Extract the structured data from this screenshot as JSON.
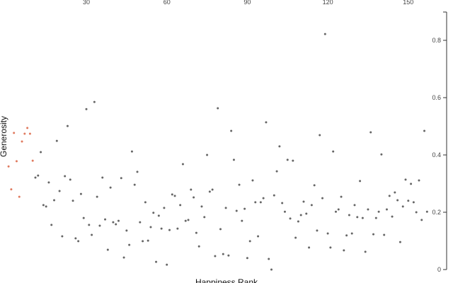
{
  "chart_data": {
    "type": "scatter",
    "title": "",
    "xlabel": "Happiness Rank",
    "ylabel": "Generosity",
    "xticks": [
      30,
      60,
      90,
      120,
      150
    ],
    "yticks": [
      0,
      0.2,
      0.4,
      0.6,
      0.8
    ],
    "ytick_labels": [
      "0",
      "0.2",
      "0.4",
      "0.6",
      "0.8"
    ],
    "xlim": [
      -2,
      168
    ],
    "ylim": [
      0,
      0.9
    ],
    "x_axis_position": "top",
    "y_axis_position": "right",
    "grid": false,
    "colors": {
      "highlight": "#e07a5f",
      "default": "#666666"
    },
    "highlight_count": 10,
    "x": [
      1,
      2,
      3,
      4,
      5,
      6,
      7,
      8,
      9,
      10,
      11,
      12,
      13,
      14,
      15,
      16,
      17,
      18,
      19,
      20,
      21,
      22,
      23,
      24,
      25,
      26,
      27,
      28,
      29,
      30,
      31,
      32,
      33,
      34,
      35,
      36,
      37,
      38,
      39,
      40,
      41,
      42,
      43,
      44,
      45,
      46,
      47,
      48,
      49,
      50,
      51,
      52,
      53,
      54,
      55,
      56,
      57,
      58,
      59,
      60,
      61,
      62,
      63,
      64,
      65,
      66,
      67,
      68,
      69,
      70,
      71,
      72,
      73,
      74,
      75,
      76,
      77,
      78,
      79,
      80,
      81,
      82,
      83,
      84,
      85,
      86,
      87,
      88,
      89,
      90,
      91,
      92,
      93,
      94,
      95,
      96,
      97,
      98,
      99,
      100,
      101,
      102,
      103,
      104,
      105,
      106,
      107,
      108,
      109,
      110,
      111,
      112,
      113,
      114,
      115,
      116,
      117,
      118,
      119,
      120,
      121,
      122,
      123,
      124,
      125,
      126,
      127,
      128,
      129,
      130,
      131,
      132,
      133,
      134,
      135,
      136,
      137,
      138,
      139,
      140,
      141,
      142,
      143,
      144,
      145,
      146,
      147,
      148,
      149,
      150,
      151,
      152,
      153,
      154,
      155,
      156,
      157
    ],
    "y": [
      0.36,
      0.28,
      0.477,
      0.378,
      0.254,
      0.447,
      0.474,
      0.494,
      0.474,
      0.38,
      0.321,
      0.328,
      0.41,
      0.225,
      0.22,
      0.304,
      0.156,
      0.242,
      0.449,
      0.274,
      0.116,
      0.326,
      0.501,
      0.314,
      0.24,
      0.109,
      0.099,
      0.264,
      0.18,
      0.56,
      0.156,
      0.121,
      0.585,
      0.254,
      0.153,
      0.321,
      0.175,
      0.069,
      0.286,
      0.165,
      0.158,
      0.17,
      0.319,
      0.042,
      0.136,
      0.086,
      0.412,
      0.296,
      0.341,
      0.165,
      0.099,
      0.235,
      0.101,
      0.148,
      0.198,
      0.027,
      0.188,
      0.143,
      0.215,
      0.017,
      0.138,
      0.262,
      0.257,
      0.143,
      0.225,
      0.368,
      0.17,
      0.173,
      0.279,
      0.252,
      0.128,
      0.081,
      0.22,
      0.183,
      0.4,
      0.272,
      0.279,
      0.047,
      0.563,
      0.141,
      0.054,
      0.215,
      0.049,
      0.484,
      0.383,
      0.205,
      0.296,
      0.17,
      0.212,
      0.04,
      0.099,
      0.311,
      0.235,
      0.116,
      0.235,
      0.249,
      0.514,
      0.037,
      0.0,
      0.259,
      0.343,
      0.43,
      0.232,
      0.202,
      0.383,
      0.178,
      0.38,
      0.111,
      0.168,
      0.19,
      0.237,
      0.195,
      0.077,
      0.225,
      0.294,
      0.136,
      0.469,
      0.249,
      0.822,
      0.126,
      0.077,
      0.412,
      0.202,
      0.21,
      0.254,
      0.067,
      0.119,
      0.19,
      0.126,
      0.225,
      0.183,
      0.309,
      0.18,
      0.062,
      0.21,
      0.479,
      0.123,
      0.18,
      0.202,
      0.402,
      0.121,
      0.21,
      0.257,
      0.185,
      0.269,
      0.242,
      0.096,
      0.22,
      0.314,
      0.24,
      0.299,
      0.235,
      0.2,
      0.311,
      0.173,
      0.484,
      0.202
    ]
  }
}
